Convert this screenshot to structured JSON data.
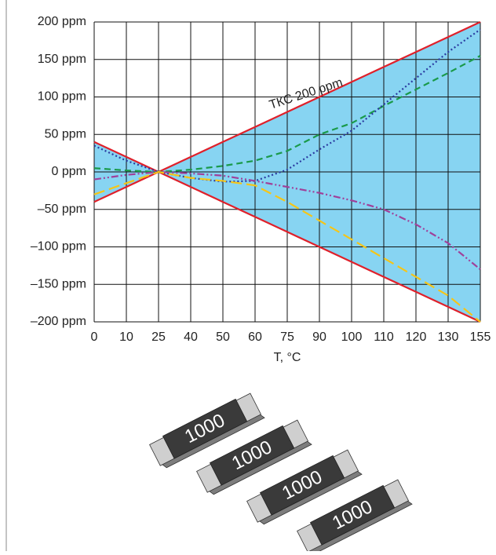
{
  "chart_data": {
    "type": "line",
    "x_label": "T, °C",
    "annotation": "ТКС 200 ppm",
    "categories": [
      "0",
      "10",
      "25",
      "40",
      "50",
      "60",
      "75",
      "90",
      "100",
      "110",
      "120",
      "130",
      "155"
    ],
    "fill_between": [
      0,
      1
    ],
    "fill_color": "#87d4f2",
    "series": [
      {
        "color": "#e0202a",
        "style": "solid",
        "values": [
          40,
          20,
          0,
          -20,
          -40,
          -60,
          -80,
          -100,
          -120,
          -140,
          -160,
          -180,
          -200
        ]
      },
      {
        "color": "#e0202a",
        "style": "solid",
        "values": [
          -40,
          -20,
          0,
          20,
          40,
          60,
          80,
          100,
          120,
          140,
          160,
          180,
          200
        ]
      },
      {
        "color": "#1a9a4a",
        "style": "dashed",
        "values": [
          5,
          2,
          0,
          3,
          8,
          15,
          28,
          50,
          65,
          88,
          110,
          132,
          155
        ]
      },
      {
        "color": "#2a3aa0",
        "style": "dotted",
        "values": [
          35,
          15,
          0,
          -8,
          -13,
          -12,
          3,
          30,
          55,
          90,
          125,
          160,
          190
        ]
      },
      {
        "color": "#a0409a",
        "style": "dashdot",
        "values": [
          -10,
          -4,
          0,
          -2,
          -5,
          -12,
          -20,
          -28,
          -38,
          -50,
          -70,
          -95,
          -130
        ]
      },
      {
        "color": "#f5c518",
        "style": "longdash",
        "values": [
          -30,
          -15,
          0,
          -8,
          -12,
          -18,
          -40,
          -65,
          -90,
          -115,
          -140,
          -165,
          -200
        ]
      }
    ],
    "ylim": [
      -200,
      200
    ],
    "yticks": [
      {
        "value": -200,
        "label": "–200 ppm"
      },
      {
        "value": -150,
        "label": "–150 ppm"
      },
      {
        "value": -100,
        "label": "–100 ppm"
      },
      {
        "value": -50,
        "label": "–50 ppm"
      },
      {
        "value": 0,
        "label": "0 ppm"
      },
      {
        "value": 50,
        "label": "50 ppm"
      },
      {
        "value": 100,
        "label": "100 ppm"
      },
      {
        "value": 150,
        "label": "150 ppm"
      },
      {
        "value": 200,
        "label": "200 ppm"
      }
    ],
    "grid": true
  },
  "image": {
    "resistor_labels": [
      "1000",
      "1000",
      "1000",
      "1000"
    ]
  }
}
